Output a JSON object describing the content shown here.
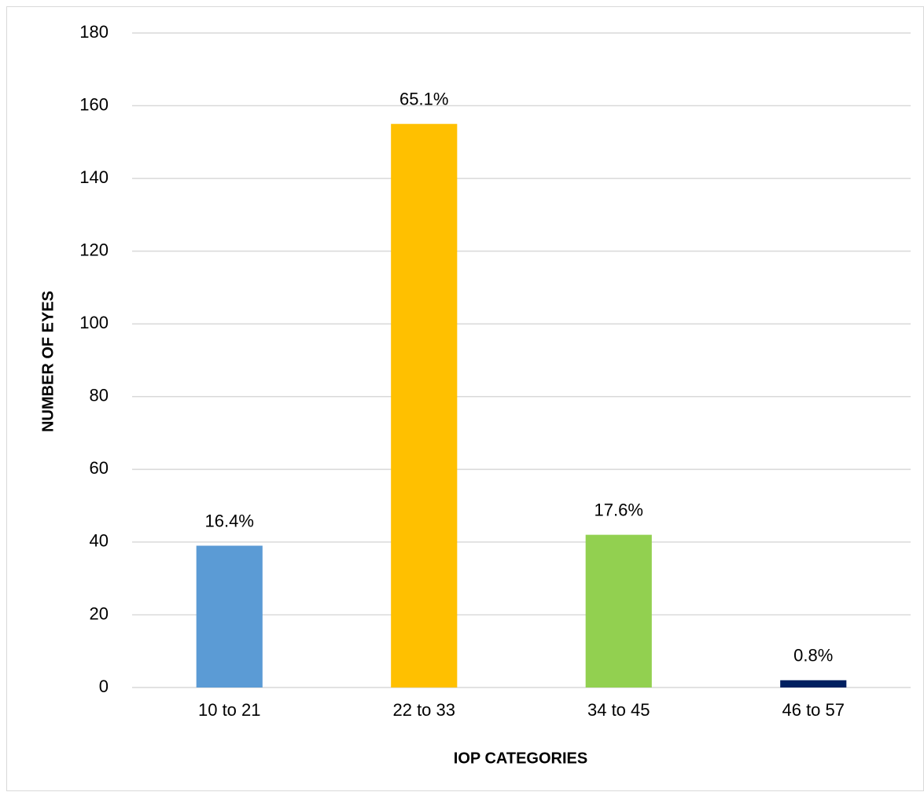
{
  "chart_data": {
    "type": "bar",
    "x_label": "IOP CATEGORIES",
    "y_label": "NUMBER OF EYES",
    "categories": [
      "10 to 21",
      "22 to 33",
      "34 to 45",
      "46 to 57"
    ],
    "values": [
      39,
      155,
      42,
      2
    ],
    "value_labels": [
      "16.4%",
      "65.1%",
      "17.6%",
      "0.8%"
    ],
    "colors": [
      "#5b9bd5",
      "#ffc000",
      "#92d050",
      "#002060"
    ],
    "ylim": [
      0,
      180
    ],
    "yticks": [
      0,
      20,
      40,
      60,
      80,
      100,
      120,
      140,
      160,
      180
    ],
    "grid": true
  }
}
